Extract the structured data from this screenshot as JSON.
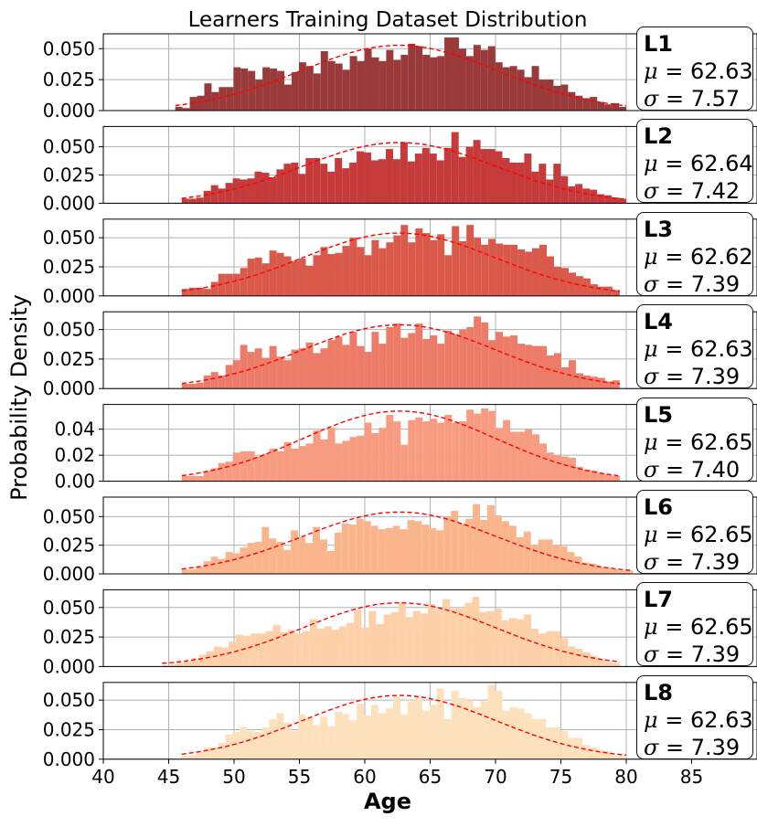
{
  "chart_data": {
    "type": "histogram",
    "title": "Learners Training Dataset Distribution",
    "xlabel": "Age",
    "ylabel": "Probability Density",
    "xlim": [
      40,
      90
    ],
    "x_ticks": [
      40,
      45,
      50,
      55,
      60,
      65,
      70,
      75,
      80,
      85
    ],
    "x_tick_labels": [
      "40",
      "45",
      "50",
      "55",
      "60",
      "65",
      "70",
      "75",
      "80",
      "85"
    ],
    "grid": true,
    "fit_curve": "normal pdf (red dashed)",
    "panels": [
      {
        "name": "L1",
        "mu": "62.63",
        "sigma": "7.57",
        "mu_value": 62.63,
        "sigma_value": 7.57,
        "color": "#9b3a3a",
        "range": [
          45.5,
          80
        ],
        "ylim": [
          0,
          0.062
        ],
        "y_ticks": [
          0,
          0.025,
          0.05
        ],
        "y_tick_labels": [
          "0.000",
          "0.025",
          "0.050"
        ],
        "densities": [
          0.003,
          0.002,
          0.011,
          0.012,
          0.022,
          0.015,
          0.019,
          0.019,
          0.035,
          0.034,
          0.032,
          0.025,
          0.035,
          0.034,
          0.032,
          0.021,
          0.031,
          0.039,
          0.036,
          0.03,
          0.048,
          0.04,
          0.038,
          0.033,
          0.044,
          0.04,
          0.05,
          0.043,
          0.04,
          0.049,
          0.041,
          0.045,
          0.054,
          0.052,
          0.045,
          0.043,
          0.044,
          0.059,
          0.059,
          0.05,
          0.044,
          0.053,
          0.049,
          0.052,
          0.039,
          0.035,
          0.036,
          0.033,
          0.027,
          0.036,
          0.025,
          0.025,
          0.02,
          0.021,
          0.015,
          0.012,
          0.01,
          0.011,
          0.007,
          0.005,
          0.006,
          0.003
        ]
      },
      {
        "name": "L2",
        "mu": "62.64",
        "sigma": "7.42",
        "mu_value": 62.64,
        "sigma_value": 7.42,
        "color": "#c53a3a",
        "range": [
          46,
          80
        ],
        "ylim": [
          0,
          0.068
        ],
        "y_ticks": [
          0,
          0.025,
          0.05
        ],
        "y_tick_labels": [
          "0.000",
          "0.025",
          "0.050"
        ],
        "densities": [
          0.004,
          0.004,
          0.005,
          0.011,
          0.016,
          0.013,
          0.018,
          0.022,
          0.021,
          0.022,
          0.028,
          0.027,
          0.023,
          0.03,
          0.035,
          0.036,
          0.026,
          0.04,
          0.04,
          0.035,
          0.028,
          0.04,
          0.031,
          0.036,
          0.046,
          0.045,
          0.038,
          0.039,
          0.048,
          0.039,
          0.054,
          0.037,
          0.044,
          0.049,
          0.044,
          0.038,
          0.049,
          0.063,
          0.041,
          0.05,
          0.056,
          0.048,
          0.048,
          0.046,
          0.04,
          0.036,
          0.036,
          0.044,
          0.028,
          0.035,
          0.021,
          0.035,
          0.024,
          0.015,
          0.017,
          0.013,
          0.012,
          0.008,
          0.007,
          0.005,
          0.004
        ]
      },
      {
        "name": "L3",
        "mu": "62.62",
        "sigma": "7.39",
        "mu_value": 62.62,
        "sigma_value": 7.39,
        "color": "#d95a4b",
        "range": [
          46,
          79.5
        ],
        "ylim": [
          0,
          0.066
        ],
        "y_ticks": [
          0,
          0.025,
          0.05
        ],
        "y_tick_labels": [
          "0.000",
          "0.025",
          "0.050"
        ],
        "densities": [
          0.006,
          0.007,
          0.007,
          0.006,
          0.012,
          0.019,
          0.019,
          0.019,
          0.024,
          0.032,
          0.033,
          0.028,
          0.039,
          0.037,
          0.034,
          0.03,
          0.032,
          0.026,
          0.035,
          0.042,
          0.036,
          0.037,
          0.043,
          0.05,
          0.042,
          0.035,
          0.048,
          0.041,
          0.046,
          0.052,
          0.061,
          0.046,
          0.058,
          0.054,
          0.048,
          0.053,
          0.035,
          0.06,
          0.047,
          0.061,
          0.05,
          0.044,
          0.049,
          0.045,
          0.044,
          0.044,
          0.04,
          0.038,
          0.041,
          0.044,
          0.034,
          0.025,
          0.024,
          0.02,
          0.017,
          0.015,
          0.01,
          0.008,
          0.008,
          0.005
        ]
      },
      {
        "name": "L4",
        "mu": "62.63",
        "sigma": "7.39",
        "mu_value": 62.63,
        "sigma_value": 7.39,
        "color": "#ec7c67",
        "range": [
          46,
          79.5
        ],
        "ylim": [
          0,
          0.065
        ],
        "y_ticks": [
          0,
          0.025,
          0.05
        ],
        "y_tick_labels": [
          "0.000",
          "0.025",
          "0.050"
        ],
        "densities": [
          0.004,
          0.004,
          0.005,
          0.011,
          0.014,
          0.011,
          0.02,
          0.024,
          0.037,
          0.031,
          0.034,
          0.026,
          0.036,
          0.027,
          0.024,
          0.033,
          0.034,
          0.039,
          0.03,
          0.034,
          0.041,
          0.044,
          0.037,
          0.048,
          0.036,
          0.031,
          0.048,
          0.038,
          0.052,
          0.055,
          0.043,
          0.047,
          0.055,
          0.042,
          0.045,
          0.038,
          0.049,
          0.046,
          0.05,
          0.052,
          0.061,
          0.056,
          0.041,
          0.048,
          0.044,
          0.045,
          0.038,
          0.037,
          0.036,
          0.036,
          0.028,
          0.03,
          0.018,
          0.024,
          0.013,
          0.011,
          0.01,
          0.009,
          0.006,
          0.007
        ]
      },
      {
        "name": "L5",
        "mu": "62.65",
        "sigma": "7.40",
        "mu_value": 62.65,
        "sigma_value": 7.4,
        "color": "#f79c80",
        "range": [
          46,
          79.5
        ],
        "ylim": [
          0,
          0.059
        ],
        "y_ticks": [
          0,
          0.02,
          0.04
        ],
        "y_tick_labels": [
          "0.00",
          "0.02",
          "0.04"
        ],
        "densities": [
          0.004,
          0.004,
          0.004,
          0.008,
          0.01,
          0.014,
          0.015,
          0.022,
          0.023,
          0.023,
          0.019,
          0.021,
          0.025,
          0.023,
          0.03,
          0.025,
          0.027,
          0.029,
          0.039,
          0.032,
          0.041,
          0.029,
          0.031,
          0.034,
          0.035,
          0.045,
          0.037,
          0.041,
          0.051,
          0.046,
          0.028,
          0.047,
          0.049,
          0.046,
          0.048,
          0.045,
          0.051,
          0.045,
          0.046,
          0.055,
          0.052,
          0.056,
          0.054,
          0.041,
          0.047,
          0.038,
          0.038,
          0.04,
          0.036,
          0.029,
          0.022,
          0.02,
          0.019,
          0.018,
          0.011,
          0.009,
          0.008,
          0.006,
          0.005,
          0.004
        ]
      },
      {
        "name": "L6",
        "mu": "62.65",
        "sigma": "7.39",
        "mu_value": 62.65,
        "sigma_value": 7.39,
        "color": "#fbb58d",
        "range": [
          46,
          80.5
        ],
        "ylim": [
          0,
          0.067
        ],
        "y_ticks": [
          0,
          0.025,
          0.05
        ],
        "y_tick_labels": [
          "0.000",
          "0.025",
          "0.050"
        ],
        "densities": [
          0.004,
          0.004,
          0.006,
          0.011,
          0.015,
          0.013,
          0.019,
          0.018,
          0.023,
          0.027,
          0.028,
          0.041,
          0.031,
          0.028,
          0.021,
          0.038,
          0.032,
          0.027,
          0.041,
          0.03,
          0.02,
          0.036,
          0.044,
          0.043,
          0.048,
          0.046,
          0.042,
          0.039,
          0.04,
          0.042,
          0.039,
          0.047,
          0.046,
          0.043,
          0.04,
          0.038,
          0.05,
          0.055,
          0.044,
          0.048,
          0.061,
          0.047,
          0.06,
          0.051,
          0.046,
          0.042,
          0.032,
          0.037,
          0.025,
          0.03,
          0.03,
          0.025,
          0.024,
          0.019,
          0.015,
          0.01,
          0.009,
          0.006,
          0.005,
          0.004,
          0.003,
          0.003
        ]
      },
      {
        "name": "L7",
        "mu": "62.65",
        "sigma": "7.39",
        "mu_value": 62.65,
        "sigma_value": 7.39,
        "color": "#fdd0a8",
        "range": [
          44.5,
          79.5
        ],
        "ylim": [
          0,
          0.065
        ],
        "y_ticks": [
          0,
          0.025,
          0.05
        ],
        "y_tick_labels": [
          "0.000",
          "0.025",
          "0.050"
        ],
        "densities": [
          0.001,
          0.002,
          0.003,
          0.004,
          0.007,
          0.01,
          0.013,
          0.017,
          0.016,
          0.021,
          0.027,
          0.026,
          0.028,
          0.028,
          0.03,
          0.035,
          0.029,
          0.031,
          0.028,
          0.03,
          0.04,
          0.032,
          0.034,
          0.031,
          0.034,
          0.037,
          0.048,
          0.033,
          0.047,
          0.036,
          0.044,
          0.046,
          0.054,
          0.042,
          0.047,
          0.045,
          0.053,
          0.049,
          0.057,
          0.049,
          0.05,
          0.054,
          0.059,
          0.046,
          0.047,
          0.049,
          0.039,
          0.041,
          0.04,
          0.044,
          0.032,
          0.028,
          0.03,
          0.03,
          0.024,
          0.017,
          0.015,
          0.012,
          0.009,
          0.006,
          0.004,
          0.003
        ]
      },
      {
        "name": "L8",
        "mu": "62.63",
        "sigma": "7.39",
        "mu_value": 62.63,
        "sigma_value": 7.39,
        "color": "#fde0bc",
        "range": [
          46,
          80
        ],
        "ylim": [
          0,
          0.065
        ],
        "y_ticks": [
          0,
          0.025,
          0.05
        ],
        "y_tick_labels": [
          "0.000",
          "0.025",
          "0.050"
        ],
        "densities": [
          0.003,
          0.003,
          0.006,
          0.01,
          0.01,
          0.014,
          0.021,
          0.023,
          0.027,
          0.024,
          0.023,
          0.027,
          0.034,
          0.039,
          0.031,
          0.024,
          0.038,
          0.035,
          0.029,
          0.036,
          0.028,
          0.04,
          0.038,
          0.033,
          0.047,
          0.037,
          0.046,
          0.039,
          0.043,
          0.053,
          0.038,
          0.049,
          0.052,
          0.041,
          0.046,
          0.06,
          0.034,
          0.058,
          0.052,
          0.05,
          0.044,
          0.049,
          0.063,
          0.058,
          0.041,
          0.044,
          0.043,
          0.039,
          0.034,
          0.034,
          0.027,
          0.027,
          0.024,
          0.018,
          0.018,
          0.012,
          0.01,
          0.008,
          0.007,
          0.003,
          0.003
        ]
      }
    ]
  }
}
